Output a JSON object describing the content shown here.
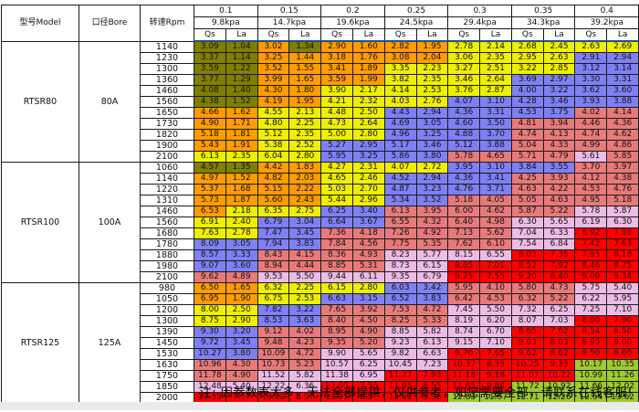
{
  "note": "注: 因参数表太多，无法全部提供，仅供参考，如您需要全部，请联系在线客服!",
  "colors": {
    "o": "#7F7F00",
    "r": "#FF9C00",
    "y": "#EFEF00",
    "p": "#8080F5",
    "k": "#E87A7A",
    "l": "#ECBCE6",
    "R": "#FE0000",
    "g": "#9ECB2D"
  },
  "red_cell_text": "#4a0404",
  "table": {
    "headers": {
      "model": "型号Model",
      "bore": "口径Bore",
      "rpm": "转速Rpm",
      "qs": "Qs",
      "la": "La"
    },
    "pressures": [
      {
        "mpa": "0.1",
        "kpa": "9.8kpa"
      },
      {
        "mpa": "0.15",
        "kpa": "14.7kpa"
      },
      {
        "mpa": "0.2",
        "kpa": "19.6kpa"
      },
      {
        "mpa": "0.25",
        "kpa": "24.5kpa"
      },
      {
        "mpa": "0.3",
        "kpa": "29.4kpa"
      },
      {
        "mpa": "0.35",
        "kpa": "34.3kpa"
      },
      {
        "mpa": "0.4",
        "kpa": "39.2kpa"
      }
    ],
    "sections": [
      {
        "model": "RTSR80",
        "bore": "80A",
        "rows": [
          {
            "rpm": "1140",
            "v": [
              "3.09",
              "1.04",
              "3.02",
              "1.34",
              "2.90",
              "1.60",
              "2.82",
              "1.95",
              "2.78",
              "2.14",
              "2.68",
              "2.45",
              "2.63",
              "2.69"
            ],
            "c": "oororrrryyyyyy"
          },
          {
            "rpm": "1230",
            "v": [
              "3.37",
              "1.14",
              "3.25",
              "1.44",
              "3.18",
              "1.76",
              "3.08",
              "2.04",
              "3.06",
              "2.35",
              "2.95",
              "2.63",
              "2.91",
              "2.94"
            ],
            "c": "oorrrrrryyyypp"
          },
          {
            "rpm": "1300",
            "v": [
              "3.59",
              "1.22",
              "3.52",
              "1.55",
              "3.41",
              "1.89",
              "3.35",
              "2.23",
              "3.27",
              "2.51",
              "3.22",
              "2.85",
              "3.12",
              "3.14"
            ],
            "c": "oorrrryyyyyypp"
          },
          {
            "rpm": "1360",
            "v": [
              "3.77",
              "1.29",
              "3.99",
              "1.65",
              "3.59",
              "1.99",
              "3.82",
              "2.35",
              "3.46",
              "2.64",
              "3.69",
              "2.97",
              "3.30",
              "3.31"
            ],
            "c": "oorrrryyyypppp"
          },
          {
            "rpm": "1460",
            "v": [
              "4.08",
              "1.40",
              "4.30",
              "1.80",
              "3.90",
              "2.17",
              "4.14",
              "2.53",
              "3.76",
              "2.87",
              "4.00",
              "3.22",
              "3.62",
              "3.60"
            ],
            "c": "oorryyyyyypppp"
          },
          {
            "rpm": "1560",
            "v": [
              "4.38",
              "1.52",
              "4.19",
              "1.95",
              "4.21",
              "2.32",
              "4.03",
              "2.76",
              "4.07",
              "3.10",
              "4.28",
              "3.46",
              "3.93",
              "3.88"
            ],
            "c": "oorryyyypppppp"
          },
          {
            "rpm": "1650",
            "v": [
              "4.66",
              "1.62",
              "4.55",
              "2.13",
              "4.48",
              "2.50",
              "4.43",
              "2.94",
              "4.36",
              "3.31",
              "4.53",
              "3.75",
              "4.02",
              "4.14"
            ],
            "c": "rryyyyppppppkk"
          },
          {
            "rpm": "1730",
            "v": [
              "4.90",
              "1.71",
              "4.80",
              "2.25",
              "4.73",
              "2.64",
              "4.69",
              "3.05",
              "4.60",
              "3.50",
              "4.81",
              "3.94",
              "4.46",
              "4.36"
            ],
            "c": "rryyyyppppkkkk"
          },
          {
            "rpm": "1820",
            "v": [
              "5.18",
              "1.81",
              "5.12",
              "2.35",
              "5.00",
              "2.80",
              "4.96",
              "3.25",
              "4.88",
              "3.70",
              "4.74",
              "4.13",
              "4.74",
              "4.62"
            ],
            "c": "rryyyyppppkkkk"
          },
          {
            "rpm": "1900",
            "v": [
              "5.43",
              "1.91",
              "5.38",
              "2.52",
              "5.27",
              "2.95",
              "5.17",
              "3.46",
              "5.12",
              "3.88",
              "5.04",
              "4.33",
              "4.99",
              "4.86"
            ],
            "c": "rryyppppppkkkk"
          },
          {
            "rpm": "2100",
            "v": [
              "6.13",
              "2.35",
              "6.04",
              "2.80",
              "5.95",
              "3.25",
              "5.86",
              "3.80",
              "5.78",
              "4.65",
              "5.71",
              "4.79",
              "5.61",
              "5.85"
            ],
            "c": "yyyyppppkkkklk"
          }
        ]
      },
      {
        "model": "RTSR100",
        "bore": "100A",
        "rows": [
          {
            "rpm": "1060",
            "v": [
              "4.57",
              "1.35",
              "4.42",
              "1.83",
              "4.27",
              "2.31",
              "4.07",
              "2.72",
              "3.95",
              "3.10",
              "3.84",
              "3.55",
              "3.70",
              "3.97"
            ],
            "c": "oorryyyyppppkk"
          },
          {
            "rpm": "1140",
            "v": [
              "4.97",
              "1.52",
              "4.82",
              "2.03",
              "4.65",
              "2.46",
              "4.52",
              "2.94",
              "4.36",
              "3.41",
              "4.25",
              "3.93",
              "4.12",
              "4.38"
            ],
            "c": "rrrryyppppkkkk"
          },
          {
            "rpm": "1220",
            "v": [
              "5.37",
              "1.68",
              "5.15",
              "2.22",
              "5.03",
              "2.70",
              "4.87",
              "3.23",
              "4.76",
              "3.71",
              "4.63",
              "4.22",
              "4.53",
              "4.76"
            ],
            "c": "rrrryyppppkkkk"
          },
          {
            "rpm": "1310",
            "v": [
              "5.73",
              "1.87",
              "5.60",
              "2.43",
              "5.44",
              "2.96",
              "5.34",
              "3.52",
              "5.18",
              "4.05",
              "5.05",
              "4.63",
              "4.95",
              "5.18"
            ],
            "c": "rrrryyppkkkkkk"
          },
          {
            "rpm": "1460",
            "v": [
              "6.53",
              "2.18",
              "6.35",
              "2.75",
              "6.25",
              "3.40",
              "6.13",
              "3.95",
              "6.00",
              "4.62",
              "5.87",
              "5.22",
              "5.78",
              "5.87"
            ],
            "c": "ryyyppkkkkkkll"
          },
          {
            "rpm": "1560",
            "v": [
              "6.91",
              "2.40",
              "6.79",
              "3.04",
              "6.64",
              "3.67",
              "6.55",
              "4.32",
              "6.40",
              "4.98",
              "6.30",
              "5.65",
              "6.19",
              "6.30"
            ],
            "c": "yyppppkkkkllll"
          },
          {
            "rpm": "1680",
            "v": [
              "7.63",
              "2.78",
              "7.47",
              "3.45",
              "7.36",
              "4.18",
              "7.26",
              "4.92",
              "7.13",
              "5.62",
              "7.04",
              "6.33",
              "6.92",
              "7.08"
            ],
            "c": "yyppkkkkkkllRR"
          },
          {
            "rpm": "1780",
            "v": [
              "8.09",
              "3.05",
              "7.94",
              "3.83",
              "7.84",
              "4.56",
              "7.75",
              "5.35",
              "7.62",
              "6.10",
              "7.54",
              "6.84",
              "7.42",
              "7.63"
            ],
            "c": "ppppkkkkkkllRR"
          },
          {
            "rpm": "1880",
            "v": [
              "8.57",
              "3.33",
              "8.43",
              "4.15",
              "8.36",
              "4.93",
              "8.23",
              "5.77",
              "8.15",
              "6.55",
              "8.03",
              "7.35",
              "7.95",
              "8.18"
            ],
            "c": "ppkkkkllllRRRR"
          },
          {
            "rpm": "1980",
            "v": [
              "9.07",
              "3.60",
              "8.94",
              "4.44",
              "8.85",
              "5.31",
              "8.73",
              "6.15",
              "8.65",
              "7.01",
              "8.52",
              "7.92",
              "8.46",
              "8.75"
            ],
            "c": "ppkkkkllRRRRRR"
          },
          {
            "rpm": "2100",
            "v": [
              "9.62",
              "4.89",
              "9.53",
              "5.50",
              "9.44",
              "6.11",
              "9.35",
              "6.79",
              "9.25",
              "7.55",
              "9.20",
              "8.40",
              "9.09",
              "9.34"
            ],
            "c": "kkllllllRRRRRR"
          }
        ]
      },
      {
        "model": "RTSR125",
        "bore": "125A",
        "rows": [
          {
            "rpm": "980",
            "v": [
              "6.50",
              "1.65",
              "6.32",
              "2.25",
              "6.15",
              "2.80",
              "6.03",
              "3.42",
              "5.95",
              "4.10",
              "5.80",
              "4.73",
              "5.75",
              "5.40"
            ],
            "c": "rryyyyppkkkkll"
          },
          {
            "rpm": "1050",
            "v": [
              "6.95",
              "1.90",
              "6.75",
              "2.53",
              "6.63",
              "3.15",
              "6.52",
              "3.83",
              "6.42",
              "4.53",
              "6.32",
              "5.22",
              "6.22",
              "5.95"
            ],
            "c": "rryyppppkkkkll"
          },
          {
            "rpm": "1200",
            "v": [
              "8.00",
              "2.50",
              "7.82",
              "3.22",
              "7.65",
              "3.92",
              "7.53",
              "4.72",
              "7.45",
              "5.50",
              "7.32",
              "6.25",
              "7.25",
              "7.10"
            ],
            "c": "yyppkkkkllllll"
          },
          {
            "rpm": "1300",
            "v": [
              "8.75",
              "2.90",
              "8.53",
              "3.63",
              "8.40",
              "4.50",
              "8.25",
              "5.33",
              "8.19",
              "6.20",
              "8.07",
              "7.03",
              "8.00",
              "7.90"
            ],
            "c": "yyppkkkkllllRR"
          },
          {
            "rpm": "1390",
            "v": [
              "9.30",
              "3.20",
              "9.12",
              "4.02",
              "8.95",
              "4.90",
              "8.85",
              "5.82",
              "8.74",
              "6.70",
              "8.65",
              "7.62",
              "8.54",
              "8.50"
            ],
            "c": "ppkkkkllllRRRR"
          },
          {
            "rpm": "1450",
            "v": [
              "9.72",
              "3.45",
              "9.48",
              "4.23",
              "9.35",
              "5.20",
              "9.23",
              "6.13",
              "9.15",
              "7.10",
              "9.03",
              "8.03",
              "8.95",
              "9.00"
            ],
            "c": "ppkkkkllllRRRR"
          },
          {
            "rpm": "1530",
            "v": [
              "10.27",
              "3.80",
              "10.09",
              "4.72",
              "9.90",
              "5.65",
              "9.82",
              "6.63",
              "9.70",
              "7.65",
              "9.62",
              "8.62",
              "9.50",
              "9.60"
            ],
            "c": "ppkkllllRRRRRR"
          },
          {
            "rpm": "1630",
            "v": [
              "10.96",
              "4.30",
              "10.73",
              "5.23",
              "10.57",
              "6.25",
              "10.45",
              "7.23",
              "10.37",
              "8.35",
              "10.25",
              "9.33",
              "10.17",
              "10.35"
            ],
            "c": "kkkkllllRRRRgg"
          },
          {
            "rpm": "1750",
            "v": [
              "11.78",
              "4.90",
              "11.52",
              "5.82",
              "11.38",
              "6.95",
              "11.27",
              "7.93",
              "11.18",
              "9.18",
              "11.07",
              "10.22",
              "10.99",
              "11.26"
            ],
            "c": "kkllllRRRRRRgg"
          },
          {
            "rpm": "1850",
            "v": [
              "12.48",
              "5.40",
              "12.22",
              "6.36",
              "12.05",
              "7.55",
              "11.95",
              "8.55",
              "11.85",
              "9.88",
              "11.72",
              "10.92",
              "11.66",
              "12.02"
            ],
            "c": "llllRRRRRRgggg"
          },
          {
            "rpm": "2000",
            "v": [
              "13.39",
              "7.17",
              "13.22",
              "8.07",
              "13.05",
              "8.97",
              "12.91",
              "9.96",
              "12.83",
              "11.07",
              "12.71",
              "12.26",
              "12.64",
              "13.62"
            ],
            "c": "RRRRRRRRgggggg"
          }
        ]
      }
    ]
  }
}
